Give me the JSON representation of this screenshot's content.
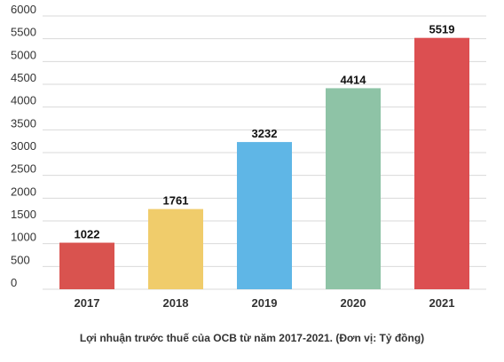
{
  "chart_data": {
    "type": "bar",
    "categories": [
      "2017",
      "2018",
      "2019",
      "2020",
      "2021"
    ],
    "values": [
      1022,
      1761,
      3232,
      4414,
      5519
    ],
    "data_labels": [
      "1022",
      "1761",
      "3232",
      "4414",
      "5519"
    ],
    "bar_colors": [
      "#d9534f",
      "#f0cc6b",
      "#5fb6e6",
      "#8ec3a6",
      "#dc4f51"
    ],
    "ylim": [
      0,
      6000
    ],
    "yticks": [
      "0",
      "500",
      "1000",
      "1500",
      "2000",
      "2500",
      "3000",
      "3500",
      "4000",
      "4500",
      "5000",
      "5500",
      "6000"
    ],
    "grid": true,
    "legend": "none",
    "caption": "Lợi nhuận trước thuế của OCB từ năm 2017-2021. (Đơn vị: Tỷ đồng)"
  }
}
